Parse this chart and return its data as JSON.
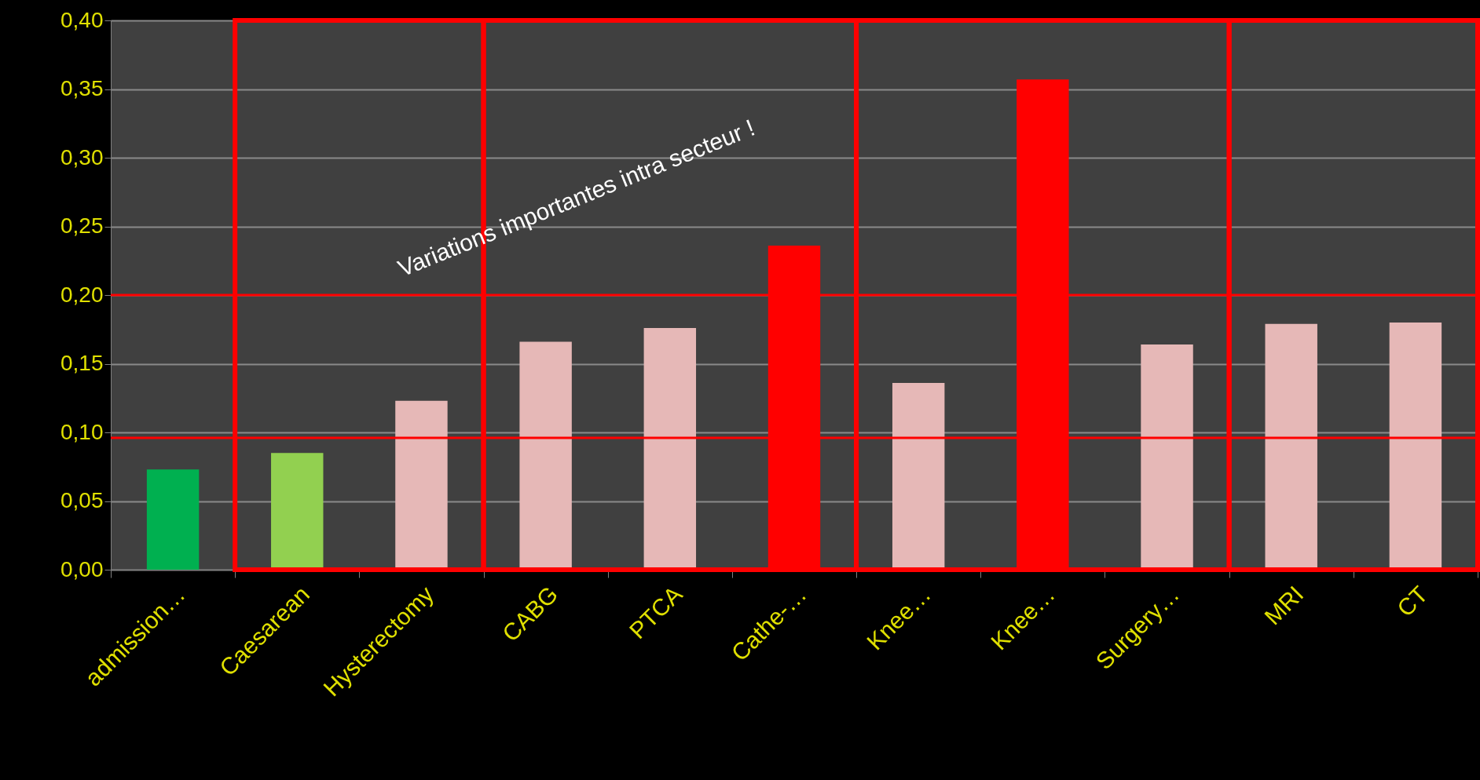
{
  "chart_data": {
    "type": "bar",
    "categories": [
      "admission…",
      "Caesarean",
      "Hysterectomy",
      "CABG",
      "PTCA",
      "Cathe-…",
      "Knee…",
      "Knee…",
      "Surgery…",
      "MRI",
      "CT"
    ],
    "values": [
      0.073,
      0.085,
      0.123,
      0.166,
      0.176,
      0.236,
      0.136,
      0.357,
      0.164,
      0.179,
      0.18
    ],
    "colors": [
      "#00b050",
      "#92d050",
      "#e6b8b7",
      "#e6b8b7",
      "#e6b8b7",
      "#ff0000",
      "#e6b8b7",
      "#ff0000",
      "#e6b8b7",
      "#e6b8b7",
      "#e6b8b7"
    ],
    "ylim": [
      0,
      0.4
    ],
    "yticks": [
      {
        "value": 0,
        "label": "0,00"
      },
      {
        "value": 0.05,
        "label": "0,05"
      },
      {
        "value": 0.1,
        "label": "0,10"
      },
      {
        "value": 0.15,
        "label": "0,15"
      },
      {
        "value": 0.2,
        "label": "0,20"
      },
      {
        "value": 0.25,
        "label": "0,25"
      },
      {
        "value": 0.3,
        "label": "0,30"
      },
      {
        "value": 0.35,
        "label": "0,35"
      },
      {
        "value": 0.4,
        "label": "0,40"
      }
    ],
    "grid": "y",
    "ref_lines": [
      {
        "axis": "y",
        "value": 0.2,
        "color": "#ff0000"
      },
      {
        "axis": "y",
        "value": 0.096,
        "color": "#ff0000"
      }
    ],
    "annotations": [
      "Variations importantes intra secteur !"
    ]
  }
}
